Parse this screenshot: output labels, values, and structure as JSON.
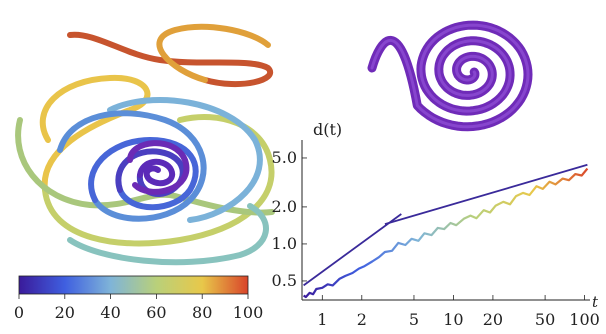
{
  "colorbar": {
    "ticks": [
      "0",
      "20",
      "40",
      "60",
      "80",
      "100"
    ],
    "stops": [
      "#3a1a9a",
      "#3f5fe0",
      "#7fb4d8",
      "#b9d07a",
      "#e8c84a",
      "#d9442a"
    ]
  },
  "chart_data": {
    "type": "line",
    "title": "",
    "ylabel": "d(t)",
    "xlabel": "t",
    "x_scale": "log",
    "y_scale": "log",
    "xlim": [
      0.7,
      110
    ],
    "ylim": [
      0.35,
      7.0
    ],
    "x_ticks": [
      1,
      2,
      5,
      10,
      20,
      50,
      100
    ],
    "x_tick_labels": [
      "1",
      "2",
      "5",
      "10",
      "20",
      "50",
      "100"
    ],
    "y_ticks": [
      0.5,
      1.0,
      2.0,
      5.0
    ],
    "y_tick_labels": [
      "0.5",
      "1.0",
      "2.0",
      "5.0"
    ],
    "grid": false,
    "series": [
      {
        "role": "measured",
        "x": [
          0.72,
          0.75,
          0.8,
          0.85,
          0.9,
          1.0,
          1.1,
          1.2,
          1.35,
          1.5,
          1.7,
          1.9,
          2.1,
          2.4,
          2.7,
          3.0,
          3.4,
          3.8,
          4.3,
          4.8,
          5.4,
          6.0,
          6.8,
          7.6,
          8.5,
          9.5,
          10.5,
          12,
          13.5,
          15,
          17,
          19,
          21,
          24,
          27,
          30,
          34,
          38,
          43,
          48,
          54,
          60,
          68,
          76,
          85,
          95,
          105
        ],
        "y": [
          0.38,
          0.37,
          0.4,
          0.39,
          0.43,
          0.44,
          0.47,
          0.46,
          0.52,
          0.55,
          0.58,
          0.63,
          0.66,
          0.72,
          0.78,
          0.86,
          0.88,
          1.02,
          0.98,
          1.1,
          1.06,
          1.22,
          1.18,
          1.35,
          1.32,
          1.48,
          1.42,
          1.6,
          1.7,
          1.62,
          1.88,
          1.8,
          2.05,
          2.2,
          2.1,
          2.45,
          2.6,
          2.5,
          2.95,
          2.8,
          3.2,
          3.05,
          3.4,
          3.3,
          3.7,
          3.6,
          4.1
        ]
      },
      {
        "role": "fit-short",
        "x": [
          0.72,
          4.0
        ],
        "y": [
          0.46,
          1.75
        ]
      },
      {
        "role": "fit-long",
        "x": [
          3.0,
          105
        ],
        "y": [
          1.45,
          4.4
        ]
      }
    ]
  }
}
